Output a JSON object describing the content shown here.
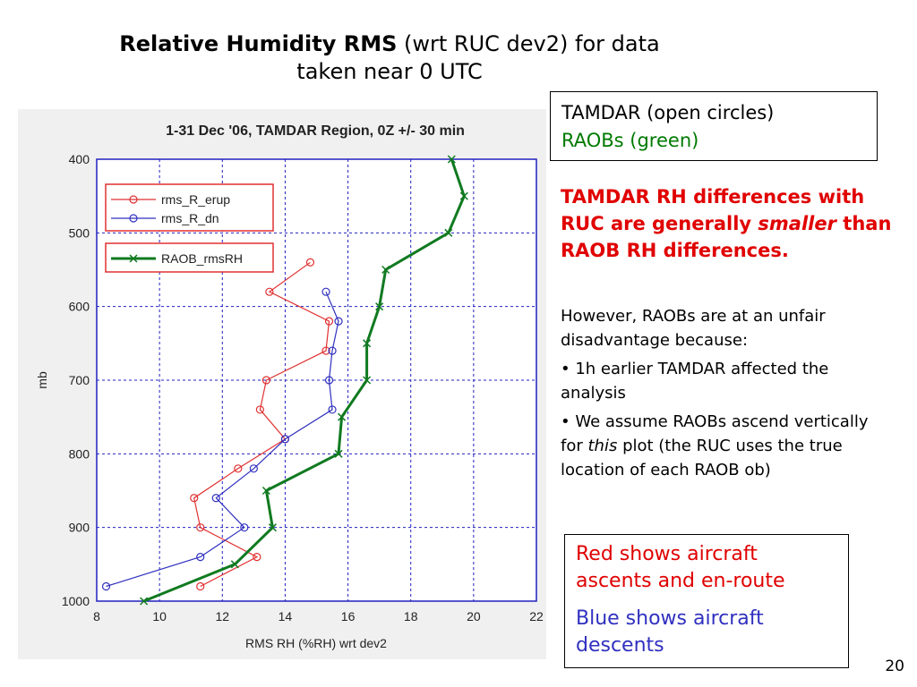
{
  "slide": {
    "title_bold": "Relative Humidity RMS",
    "title_rest": " (wrt RUC dev2) for data",
    "title_line2": "taken near 0 UTC",
    "legend_box": {
      "line1": "TAMDAR (open circles)",
      "line2": "RAOBs (green)",
      "line2_color": "#007a00"
    },
    "claim": {
      "part1": "TAMDAR RH differences with RUC are generally ",
      "italic": "smaller",
      "part2": " than RAOB RH differences.",
      "color": "#e00000"
    },
    "body": {
      "intro": "However, RAOBs are at an unfair disadvantage because:",
      "bullet1": "• 1h earlier TAMDAR affected the analysis",
      "bullet2_a": "• We assume RAOBs ascend vertically for ",
      "bullet2_italic": "this",
      "bullet2_b": " plot (the RUC uses the true location of each RAOB ob)"
    },
    "color_box": {
      "red_text": "Red shows aircraft ascents and en-route",
      "red_color": "#e00000",
      "blue_text": "Blue shows aircraft descents",
      "blue_color": "#3030c0"
    },
    "page_number": "20"
  },
  "chart_data": {
    "type": "line",
    "title": "1-31 Dec '06, TAMDAR Region, 0Z +/- 30 min",
    "xlabel": "RMS RH (%RH) wrt dev2",
    "ylabel": "mb",
    "xlim": [
      8,
      22
    ],
    "ylim": [
      1000,
      400
    ],
    "xticks": [
      "8",
      "10",
      "12",
      "14",
      "16",
      "18",
      "20",
      "22"
    ],
    "yticks": [
      "400",
      "500",
      "600",
      "700",
      "800",
      "900",
      "1000"
    ],
    "grid": true,
    "legend_placement": "top-left",
    "series": [
      {
        "name": "rms_R_erup",
        "color": "#e03030",
        "marker": "circle",
        "x": [
          14.8,
          13.5,
          15.4,
          15.3,
          13.4,
          13.2,
          14.0,
          12.5,
          11.1,
          11.3,
          13.1,
          11.3
        ],
        "y": [
          540,
          580,
          620,
          660,
          700,
          740,
          780,
          820,
          860,
          900,
          940,
          980
        ]
      },
      {
        "name": "rms_R_dn",
        "color": "#3030c0",
        "marker": "circle",
        "x": [
          15.3,
          15.7,
          15.5,
          15.4,
          15.5,
          14.0,
          13.0,
          11.8,
          12.7,
          11.3,
          8.3
        ],
        "y": [
          580,
          620,
          660,
          700,
          740,
          780,
          820,
          860,
          900,
          940,
          980
        ]
      },
      {
        "name": "RAOB_rmsRH",
        "color": "#107a20",
        "marker": "x",
        "x": [
          19.3,
          19.7,
          19.2,
          17.2,
          17.0,
          16.6,
          16.6,
          15.8,
          15.7,
          13.4,
          13.6,
          12.4,
          9.5
        ],
        "y": [
          400,
          450,
          500,
          550,
          600,
          650,
          700,
          750,
          800,
          850,
          900,
          950,
          1000
        ]
      }
    ]
  }
}
